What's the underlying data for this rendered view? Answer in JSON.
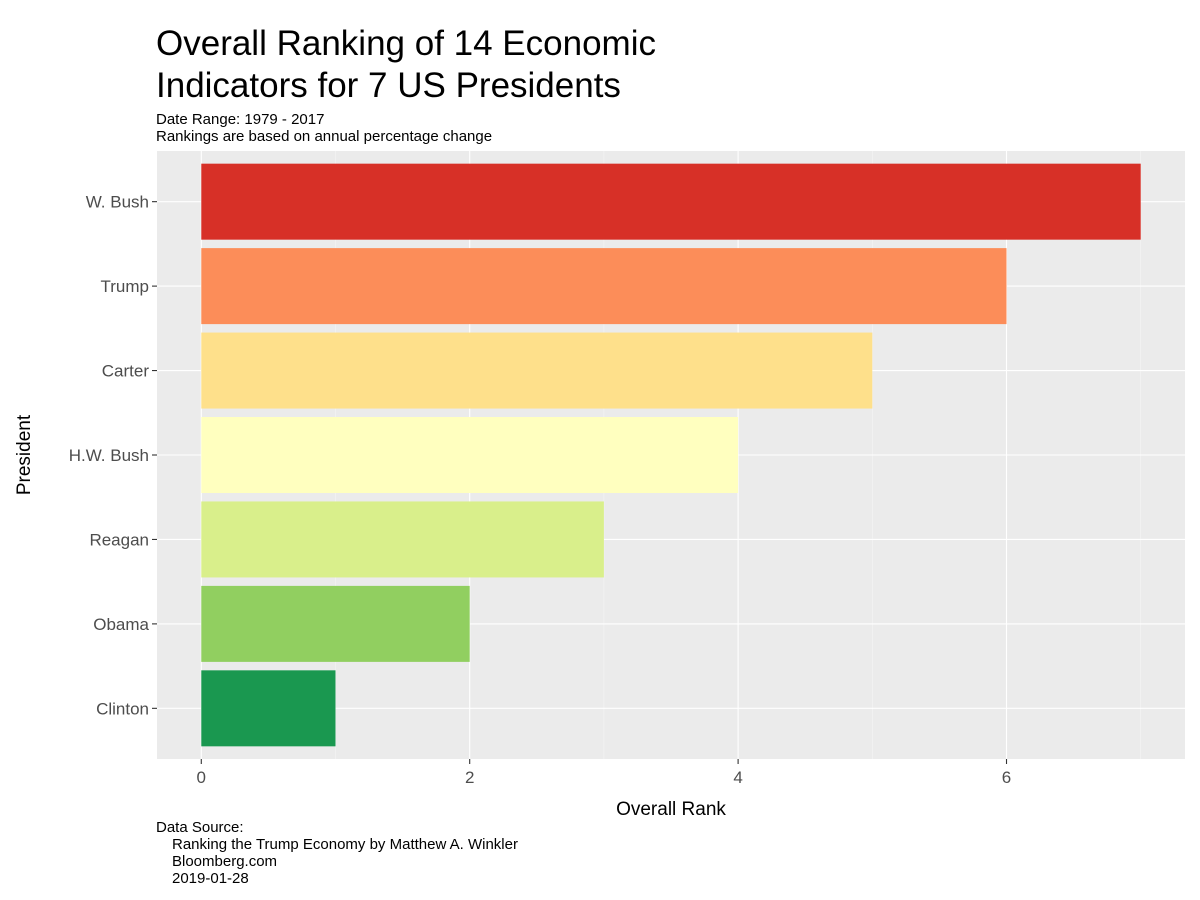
{
  "chart_data": {
    "type": "bar",
    "orientation": "horizontal",
    "title_lines": [
      "Overall Ranking of 14 Economic",
      "Indicators for 7 US Presidents"
    ],
    "subtitle_lines": [
      "Date Range: 1979 - 2017",
      "Rankings are based on annual percentage change"
    ],
    "xlabel": "Overall Rank",
    "ylabel": "President",
    "categories": [
      "W. Bush",
      "Trump",
      "Carter",
      "H.W. Bush",
      "Reagan",
      "Obama",
      "Clinton"
    ],
    "values": [
      7,
      6,
      5,
      4,
      3,
      2,
      1
    ],
    "colors": [
      "#d73027",
      "#fc8d59",
      "#fee08b",
      "#ffffbf",
      "#d9ef8b",
      "#91cf60",
      "#1a9850"
    ],
    "x_ticks": [
      0,
      2,
      4,
      6
    ],
    "xlim": [
      -0.33,
      7.33
    ],
    "grid": true,
    "legend": "none",
    "panel_background": "#ebebeb",
    "caption_header": "Data Source:",
    "caption_lines": [
      "Ranking the Trump Economy by Matthew A. Winkler",
      "Bloomberg.com",
      "2019-01-28"
    ]
  }
}
